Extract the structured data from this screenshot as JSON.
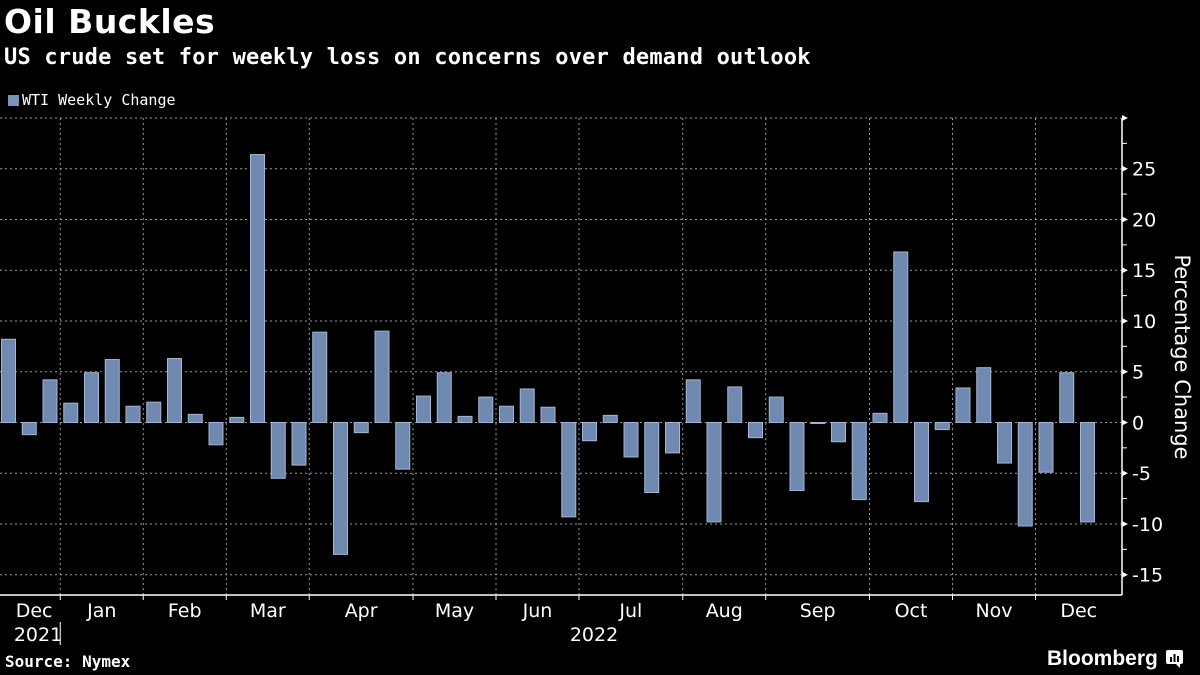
{
  "header": {
    "title": "Oil Buckles",
    "subtitle": "US crude set for weekly loss on concerns over demand outlook"
  },
  "legend": {
    "label": "WTI Weekly Change",
    "color": "#7C93B8"
  },
  "footer": {
    "source": "Source: Nymex",
    "brand": "Bloomberg",
    "brand_icon": "chart-bubble-icon"
  },
  "colors": {
    "bar_fill": "#7089B0",
    "bar_edge": "#A3B5D3",
    "grid": "#9a9a9a",
    "axis": "#ffffff"
  },
  "chart_data": {
    "type": "bar",
    "title": "Oil Buckles",
    "subtitle": "US crude set for weekly loss on concerns over demand outlook",
    "xlabel": "",
    "ylabel": "Percentage Change",
    "ylim": [
      -17,
      30
    ],
    "yticks": [
      25,
      20,
      15,
      10,
      5,
      0,
      -5,
      -10,
      -15
    ],
    "grid": true,
    "legend_position": "top-left",
    "series": [
      {
        "name": "WTI Weekly Change",
        "values": [
          8.2,
          -1.2,
          4.2,
          1.9,
          4.9,
          6.2,
          1.6,
          2.0,
          6.3,
          0.8,
          -2.2,
          0.5,
          26.4,
          -5.5,
          -4.2,
          8.9,
          -13.0,
          -1.0,
          9.0,
          -4.6,
          2.6,
          4.9,
          0.6,
          2.5,
          1.6,
          3.3,
          1.5,
          -9.3,
          -1.8,
          0.7,
          -3.4,
          -6.9,
          -3.0,
          4.2,
          -9.8,
          3.5,
          -1.5,
          2.5,
          -6.7,
          -0.1,
          -1.9,
          -7.6,
          0.9,
          16.8,
          -7.8,
          -0.7,
          3.4,
          5.4,
          -4.0,
          -10.2,
          -4.9,
          4.9,
          -9.8
        ]
      }
    ],
    "months": [
      {
        "label": "Dec",
        "year": "2021",
        "start_week": 0,
        "weeks": 3
      },
      {
        "label": "Jan",
        "start_week": 3,
        "weeks": 4
      },
      {
        "label": "Feb",
        "start_week": 7,
        "weeks": 4
      },
      {
        "label": "Mar",
        "start_week": 11,
        "weeks": 4
      },
      {
        "label": "Apr",
        "start_week": 15,
        "weeks": 5
      },
      {
        "label": "May",
        "start_week": 20,
        "weeks": 4
      },
      {
        "label": "Jun",
        "start_week": 24,
        "weeks": 4
      },
      {
        "label": "Jul",
        "start_week": 28,
        "weeks": 5
      },
      {
        "label": "Aug",
        "start_week": 33,
        "weeks": 4
      },
      {
        "label": "Sep",
        "start_week": 37,
        "weeks": 5
      },
      {
        "label": "Oct",
        "start_week": 42,
        "weeks": 4
      },
      {
        "label": "Nov",
        "start_week": 46,
        "weeks": 4
      },
      {
        "label": "Dec",
        "start_week": 50,
        "weeks": 3
      }
    ],
    "year_labels": [
      {
        "label": "2021",
        "month_index": 0
      },
      {
        "label": "2022",
        "month_index": 6
      }
    ]
  }
}
